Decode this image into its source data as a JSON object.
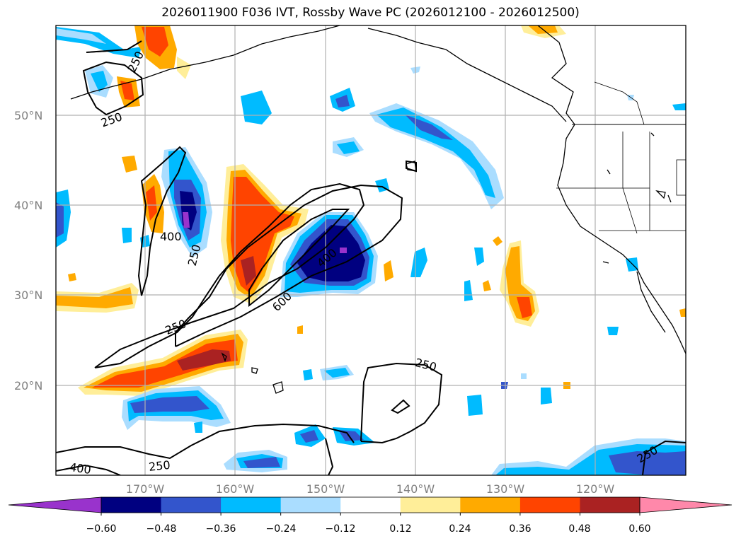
{
  "title": "2026011900 F036 IVT, Rossby Wave PC (2026012100 - 2026012500)",
  "map": {
    "lon_labels": [
      "170°W",
      "160°W",
      "150°W",
      "140°W",
      "130°W",
      "120°W"
    ],
    "lat_labels": [
      "50°N",
      "40°N",
      "30°N",
      "20°N"
    ],
    "grid": true,
    "contour_labels": [
      "250",
      "250",
      "250",
      "250",
      "250",
      "250",
      "400",
      "400",
      "400",
      "600"
    ]
  },
  "colorbar": {
    "colors": [
      "#9933cc",
      "#000080",
      "#3355cc",
      "#00bbff",
      "#aaddff",
      "#ffffff",
      "#ffee99",
      "#ffaa00",
      "#ff4400",
      "#aa2222",
      "#ff88aa"
    ],
    "ticks": [
      "−0.60",
      "−0.48",
      "−0.36",
      "−0.24",
      "−0.12",
      "0.12",
      "0.24",
      "0.36",
      "0.48",
      "0.60"
    ],
    "extend": "both"
  }
}
